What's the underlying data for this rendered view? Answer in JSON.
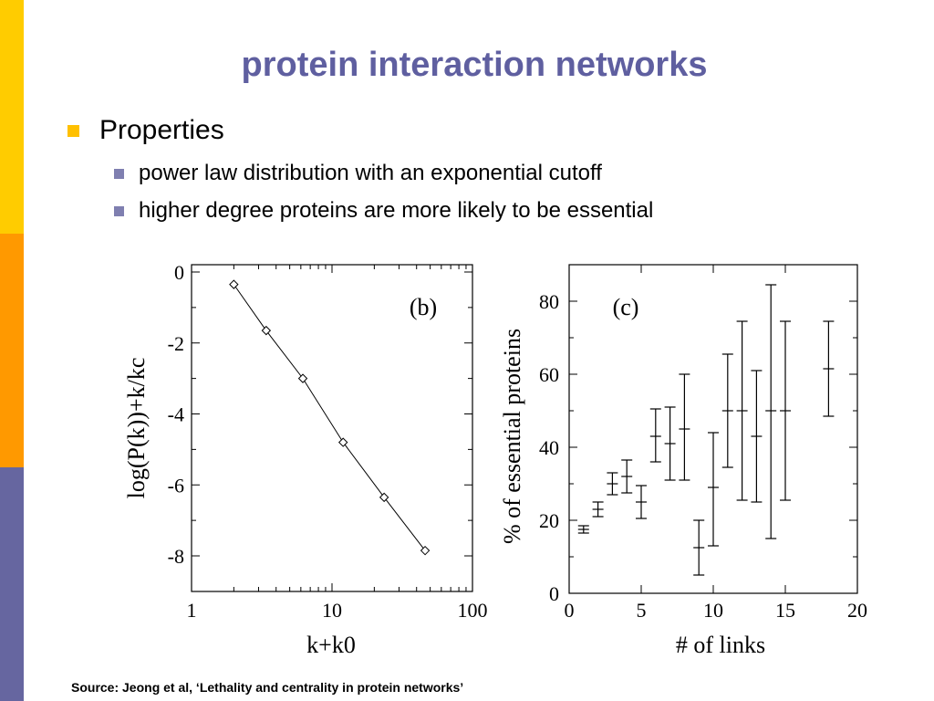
{
  "slide": {
    "title": "protein interaction networks",
    "bullet_l1": "Properties",
    "bullet_l2": [
      "power law distribution with an exponential cutoff",
      "higher degree proteins are more likely to be essential"
    ],
    "source": "Source: Jeong et al, ‘Lethality and centrality in protein networks’",
    "colors": {
      "title": "#5F5FA0",
      "sidebar": [
        "#FFCC00",
        "#FF9900",
        "#6666A0"
      ],
      "bullet_l1": "#FFC000",
      "bullet_l2": "#7F7FB0"
    }
  },
  "chart_data": [
    {
      "type": "line",
      "panel_label": "(b)",
      "xlabel": "k+k0",
      "ylabel": "log(P(k))+k/kc",
      "x_scale": "log",
      "xlim": [
        1,
        100
      ],
      "ylim": [
        -9,
        0
      ],
      "xticks": [
        1,
        10,
        100
      ],
      "yticks": [
        0,
        -2,
        -4,
        -6,
        -8
      ],
      "marker": "diamond",
      "series": [
        {
          "x": [
            2.0,
            3.4,
            6.2,
            12.0,
            23.5,
            46.0
          ],
          "y": [
            -0.35,
            -1.65,
            -3.0,
            -4.8,
            -6.35,
            -7.85
          ]
        }
      ]
    },
    {
      "type": "scatter",
      "panel_label": "(c)",
      "xlabel": "# of links",
      "ylabel": "% of essential proteins",
      "xlim": [
        0,
        20
      ],
      "ylim": [
        0,
        90
      ],
      "xticks": [
        0,
        5,
        10,
        15,
        20
      ],
      "yticks": [
        0,
        20,
        40,
        60,
        80
      ],
      "error_bars": true,
      "points": [
        {
          "x": 1,
          "y": 17.5,
          "low": 16.5,
          "high": 18.5
        },
        {
          "x": 2,
          "y": 23,
          "low": 21,
          "high": 25
        },
        {
          "x": 3,
          "y": 30,
          "low": 27,
          "high": 33
        },
        {
          "x": 4,
          "y": 32,
          "low": 27.5,
          "high": 36.5
        },
        {
          "x": 5,
          "y": 25,
          "low": 20.5,
          "high": 29.5
        },
        {
          "x": 6,
          "y": 43,
          "low": 36,
          "high": 50.5
        },
        {
          "x": 7,
          "y": 41,
          "low": 31,
          "high": 51
        },
        {
          "x": 8,
          "y": 45,
          "low": 31,
          "high": 60
        },
        {
          "x": 9,
          "y": 12.5,
          "low": 5,
          "high": 20
        },
        {
          "x": 10,
          "y": 29,
          "low": 13,
          "high": 44
        },
        {
          "x": 11,
          "y": 50,
          "low": 34.5,
          "high": 65.5
        },
        {
          "x": 12,
          "y": 50,
          "low": 25.5,
          "high": 74.5
        },
        {
          "x": 13,
          "y": 43,
          "low": 25,
          "high": 61
        },
        {
          "x": 14,
          "y": 50,
          "low": 15,
          "high": 84.5
        },
        {
          "x": 15,
          "y": 50,
          "low": 25.5,
          "high": 74.5
        },
        {
          "x": 18,
          "y": 61.5,
          "low": 48.5,
          "high": 74.5
        }
      ]
    }
  ]
}
